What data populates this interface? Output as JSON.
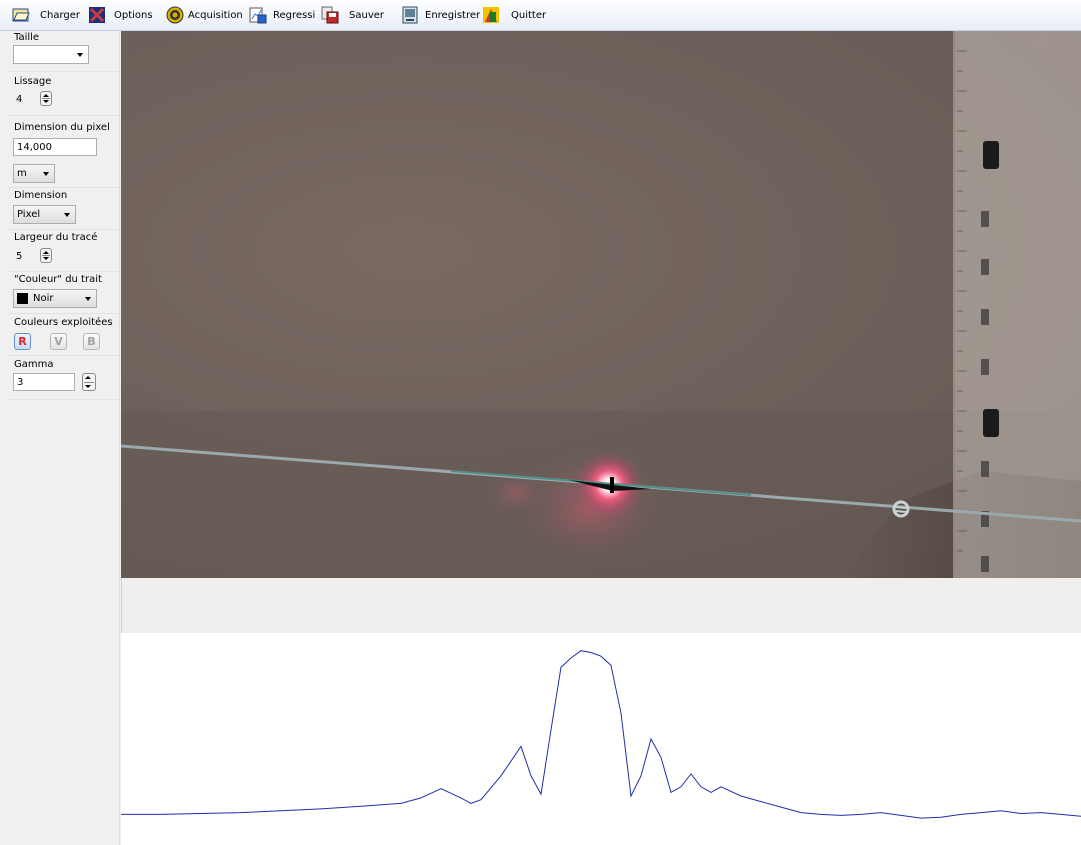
{
  "menu": {
    "charger": "Charger",
    "options": "Options",
    "acquisition": "Acquisition",
    "regressi": "Regressi",
    "sauver": "Sauver",
    "enregistrer": "Enregistrer",
    "quitter": "Quitter"
  },
  "sidebar": {
    "taille": {
      "label": "Taille",
      "value": ""
    },
    "lissage": {
      "label": "Lissage",
      "value": "4"
    },
    "dimension_pixel": {
      "label": "Dimension du pixel",
      "value": "14,000",
      "unit": "m"
    },
    "dimension": {
      "label": "Dimension",
      "value": "Pixel"
    },
    "largeur": {
      "label": "Largeur du tracé",
      "value": "5"
    },
    "couleur": {
      "label": "\"Couleur\" du trait",
      "value": "Noir",
      "swatch": "#000000"
    },
    "couleurs_exploitees": {
      "label": "Couleurs exploitées",
      "r": "R",
      "v": "V",
      "b": "B",
      "active": "R"
    },
    "gamma": {
      "label": "Gamma",
      "value": "3"
    }
  },
  "colors": {
    "profile_line": "#1f2fa8",
    "laser_spot": "#ff3c6e",
    "cut_line": "#9aa9ae",
    "menubar": "#e8eef7"
  },
  "chart_data": {
    "type": "line",
    "title": "",
    "xlabel": "",
    "ylabel": "",
    "ylim": [
      0,
      200
    ],
    "series": [
      {
        "x": [
          0,
          40,
          80,
          120,
          160,
          200,
          240,
          280,
          300,
          320,
          340,
          350,
          360,
          380,
          400,
          410,
          420,
          430,
          440,
          450,
          460,
          470,
          480,
          490,
          500,
          510,
          520,
          530,
          540,
          550,
          560,
          570,
          580,
          590,
          600,
          620,
          640,
          660,
          680,
          700,
          720,
          740,
          760,
          780,
          800,
          820,
          840,
          860,
          880,
          900,
          920,
          940,
          960
        ],
        "y": [
          18,
          18,
          19,
          20,
          22,
          24,
          27,
          30,
          36,
          46,
          36,
          30,
          34,
          60,
          92,
          60,
          40,
          110,
          178,
          188,
          196,
          194,
          190,
          180,
          128,
          38,
          60,
          100,
          80,
          42,
          48,
          62,
          48,
          42,
          48,
          38,
          32,
          26,
          20,
          18,
          17,
          18,
          20,
          17,
          14,
          15,
          18,
          20,
          22,
          19,
          20,
          18,
          16
        ]
      }
    ]
  }
}
